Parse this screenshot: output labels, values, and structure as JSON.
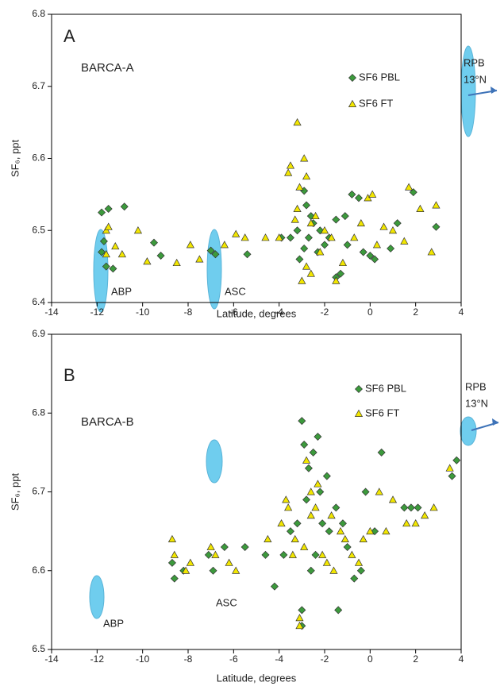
{
  "chart_data": [
    {
      "type": "scatter",
      "xlabel": "Latitude, degrees",
      "ylabel": "SF₆, ppt",
      "annotations": [
        "A",
        "BARCA-A",
        "ABP",
        "ASC",
        "RPB",
        "13°N"
      ],
      "xlim": [
        -14,
        4
      ],
      "xticks": [
        -14,
        -12,
        -10,
        -8,
        -6,
        -4,
        -2,
        0,
        2,
        4
      ],
      "ylim": [
        6.4,
        6.8
      ],
      "yticks": [
        6.4,
        6.5,
        6.6,
        6.7,
        6.8
      ],
      "series": [
        {
          "name": "SF6 PBL",
          "color": "#3c9a3c",
          "marker": "diamond",
          "x": [
            -11.8,
            -11.5,
            -10.8,
            -11.7,
            -11.8,
            -11.6,
            -11.3,
            -9.5,
            -9.2,
            -7,
            -6.8,
            -5.4,
            -3.9,
            -3.2,
            -2.9,
            -2.8,
            -2.6,
            -2.5,
            -2.7,
            -2.9,
            -3.1,
            -2.2,
            -2,
            -1.5,
            -1.3,
            -1.5,
            -1.1,
            -0.8,
            -0.5,
            -0.3,
            0,
            0.2,
            0.9,
            1.2,
            1.9,
            2.9,
            -1.8,
            -1,
            -3.5,
            -2.3
          ],
          "values": [
            6.525,
            6.53,
            6.533,
            6.485,
            6.47,
            6.45,
            6.447,
            6.483,
            6.465,
            6.472,
            6.467,
            6.467,
            6.49,
            6.5,
            6.555,
            6.535,
            6.52,
            6.51,
            6.49,
            6.475,
            6.46,
            6.5,
            6.48,
            6.515,
            6.44,
            6.435,
            6.52,
            6.55,
            6.545,
            6.47,
            6.465,
            6.46,
            6.475,
            6.51,
            6.553,
            6.505,
            6.49,
            6.48,
            6.49,
            6.47
          ]
        },
        {
          "name": "SF6 FT",
          "color": "#f2e600",
          "marker": "triangle",
          "x": [
            -11.6,
            -11.5,
            -11.6,
            -11.2,
            -10.9,
            -10.2,
            -9.8,
            -8.5,
            -7.9,
            -7.5,
            -6.4,
            -5.9,
            -5.5,
            -4.6,
            -4,
            -3.6,
            -3.5,
            -3.2,
            -3.1,
            -2.9,
            -2.8,
            -3.2,
            -3.3,
            -2.6,
            -2.4,
            -3,
            -2.8,
            -2.6,
            -2.2,
            -2,
            -1.7,
            -1.5,
            -1.2,
            -0.4,
            -0.1,
            0.1,
            0.6,
            1,
            1.5,
            1.7,
            2.2,
            2.7,
            2.9,
            -0.7,
            0.3
          ],
          "values": [
            6.5,
            6.505,
            6.467,
            6.478,
            6.467,
            6.5,
            6.457,
            6.455,
            6.48,
            6.46,
            6.48,
            6.495,
            6.49,
            6.49,
            6.49,
            6.58,
            6.59,
            6.65,
            6.56,
            6.6,
            6.575,
            6.53,
            6.515,
            6.51,
            6.52,
            6.43,
            6.45,
            6.44,
            6.47,
            6.5,
            6.49,
            6.43,
            6.455,
            6.51,
            6.545,
            6.55,
            6.505,
            6.5,
            6.485,
            6.56,
            6.53,
            6.47,
            6.535,
            6.49,
            6.48
          ]
        }
      ]
    },
    {
      "type": "scatter",
      "xlabel": "Latitude, degrees",
      "ylabel": "SF₆, ppt",
      "annotations": [
        "B",
        "BARCA-B",
        "ABP",
        "ASC",
        "RPB",
        "13°N"
      ],
      "xlim": [
        -14,
        4
      ],
      "xticks": [
        -14,
        -12,
        -10,
        -8,
        -6,
        -4,
        -2,
        0,
        2,
        4
      ],
      "ylim": [
        6.5,
        6.9
      ],
      "yticks": [
        6.5,
        6.6,
        6.7,
        6.8,
        6.9
      ],
      "series": [
        {
          "name": "SF6 PBL",
          "color": "#3c9a3c",
          "marker": "diamond",
          "x": [
            -8.7,
            -8.6,
            -8.2,
            -7.1,
            -6.9,
            -6.4,
            -5.5,
            -4.6,
            -4.2,
            -3.5,
            -3.2,
            -3,
            -2.9,
            -2.7,
            -2.5,
            -2.3,
            -2.2,
            -2.1,
            -3,
            -3,
            -2.6,
            -2.4,
            -1.8,
            -1.5,
            -1.4,
            -1.2,
            -1,
            -0.7,
            -0.4,
            0.2,
            0.5,
            -0.2,
            1.5,
            1.8,
            2.1,
            3.6,
            3.8,
            -3.8,
            -2.8,
            -1.9
          ],
          "values": [
            6.61,
            6.59,
            6.6,
            6.62,
            6.6,
            6.63,
            6.63,
            6.62,
            6.58,
            6.65,
            6.66,
            6.79,
            6.76,
            6.73,
            6.75,
            6.77,
            6.7,
            6.66,
            6.53,
            6.55,
            6.6,
            6.62,
            6.65,
            6.68,
            6.55,
            6.66,
            6.63,
            6.59,
            6.6,
            6.65,
            6.75,
            6.7,
            6.68,
            6.68,
            6.68,
            6.72,
            6.74,
            6.62,
            6.69,
            6.72
          ]
        },
        {
          "name": "SF6 FT",
          "color": "#f2e600",
          "marker": "triangle",
          "x": [
            -8.7,
            -8.6,
            -8.1,
            -7.9,
            -7,
            -6.8,
            -6.2,
            -5.9,
            -4.5,
            -3.9,
            -3.7,
            -3.4,
            -3.1,
            -3.1,
            -2.8,
            -2.6,
            -2.4,
            -2.6,
            -2.1,
            -1.9,
            -1.6,
            -1.3,
            -1.1,
            -0.8,
            -0.3,
            0,
            0.4,
            0.7,
            1,
            1.6,
            2,
            2.4,
            2.8,
            3.5,
            -3.3,
            -2.9,
            -2.3,
            -1.7,
            -3.6,
            -0.5
          ],
          "values": [
            6.64,
            6.62,
            6.6,
            6.61,
            6.63,
            6.62,
            6.61,
            6.6,
            6.64,
            6.66,
            6.69,
            6.62,
            6.54,
            6.53,
            6.74,
            6.7,
            6.68,
            6.67,
            6.62,
            6.61,
            6.6,
            6.65,
            6.64,
            6.62,
            6.64,
            6.65,
            6.7,
            6.65,
            6.69,
            6.66,
            6.66,
            6.67,
            6.68,
            6.73,
            6.64,
            6.63,
            6.71,
            6.67,
            6.68,
            6.61
          ]
        }
      ]
    }
  ]
}
